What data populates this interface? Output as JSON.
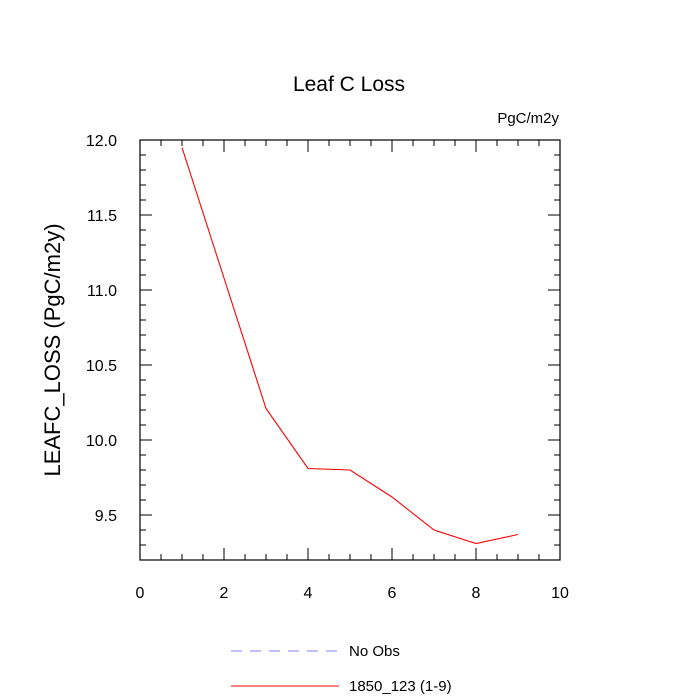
{
  "chart_data": {
    "type": "line",
    "title": "Leaf C Loss",
    "units": "PgC/m2y",
    "xlabel": "",
    "ylabel": "LEAFC_LOSS  (PgC/m2y)",
    "xlim": [
      0,
      10
    ],
    "ylim": [
      9.2,
      12.0
    ],
    "xticks": [
      0,
      2,
      4,
      6,
      8,
      10
    ],
    "xtick_labels": [
      "0",
      "2",
      "4",
      "6",
      "8",
      "10"
    ],
    "yticks": [
      9.5,
      10.0,
      10.5,
      11.0,
      11.5,
      12.0
    ],
    "ytick_labels": [
      "9.5",
      "10.0",
      "10.5",
      "11.0",
      "11.5",
      "12.0"
    ],
    "grid": false,
    "series": [
      {
        "name": "1850_123 (1-9)",
        "color": "#ff0000",
        "style": "solid",
        "x": [
          1,
          2,
          3,
          4,
          5,
          6,
          7,
          8,
          9
        ],
        "values": [
          11.95,
          11.08,
          10.21,
          9.81,
          9.8,
          9.62,
          9.4,
          9.31,
          9.37
        ]
      }
    ],
    "legend": [
      {
        "label": "No Obs",
        "color": "#8080ff",
        "style": "dashed"
      },
      {
        "label": "1850_123 (1-9)",
        "color": "#ff0000",
        "style": "solid"
      }
    ],
    "legend_position": "bottom-center"
  }
}
